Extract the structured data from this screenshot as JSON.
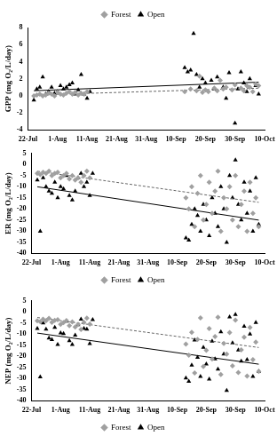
{
  "chart_data": [
    {
      "type": "scatter",
      "y_label": "GPP (mg O₂/L/day)",
      "legend": "top",
      "grid": false,
      "xlim": [
        0,
        80
      ],
      "xticks": [
        {
          "value": 0,
          "label": "22-Jul"
        },
        {
          "value": 10,
          "label": "1-Aug"
        },
        {
          "value": 20,
          "label": "11-Aug"
        },
        {
          "value": 30,
          "label": "21-Aug"
        },
        {
          "value": 40,
          "label": "31-Aug"
        },
        {
          "value": 50,
          "label": "10-Sep"
        },
        {
          "value": 60,
          "label": "20-Sep"
        },
        {
          "value": 70,
          "label": "30-Sep"
        },
        {
          "value": 80,
          "label": "10-Oct"
        }
      ],
      "ylim": [
        -4,
        8
      ],
      "yticks": [
        -4,
        -2,
        0,
        2,
        4,
        6,
        8
      ],
      "series": [
        {
          "name": "Forest",
          "color": "#a0a0a0",
          "marker": "diamond",
          "line_style": "dashed",
          "x": [
            2,
            3,
            4,
            5,
            6,
            7,
            8,
            9,
            10,
            11,
            12,
            13,
            14,
            15,
            16,
            17,
            18,
            19,
            20,
            53,
            55,
            57,
            58,
            59,
            60,
            61,
            63,
            64,
            65,
            66,
            67,
            69,
            70,
            72,
            73,
            74,
            75,
            76,
            77,
            78
          ],
          "values": [
            0,
            0.1,
            0.2,
            0,
            0.1,
            0.3,
            0.2,
            0,
            0.4,
            0.2,
            0.1,
            0.3,
            0.5,
            0.2,
            0.4,
            0.1,
            0.3,
            0.2,
            0.5,
            0.5,
            0.8,
            0.6,
            2.3,
            0.4,
            0.7,
            0.5,
            0.9,
            0.6,
            1.8,
            0.8,
            1.0,
            0.7,
            1.3,
            0.9,
            0.6,
            1.2,
            1.0,
            0.5,
            1.4,
            1.2
          ],
          "trend": {
            "x": [
              2,
              78
            ],
            "values": [
              0.1,
              0.9
            ]
          }
        },
        {
          "name": "Open",
          "color": "#000000",
          "marker": "triangle",
          "line_style": "solid",
          "x": [
            2,
            3,
            4,
            5,
            6,
            7,
            8,
            9,
            10,
            11,
            12,
            13,
            14,
            15,
            16,
            17,
            18,
            19,
            20,
            21,
            53,
            54,
            55,
            56,
            57,
            58,
            59,
            60,
            62,
            63,
            64,
            66,
            67,
            68,
            70,
            71,
            72,
            73,
            74,
            75,
            77,
            78
          ],
          "values": [
            -0.5,
            0.8,
            1.0,
            2.2,
            0.2,
            0.5,
            1.0,
            0.3,
            0.5,
            1.2,
            0.8,
            1.0,
            1.3,
            1.5,
            0.2,
            0.7,
            2.5,
            0.2,
            -0.3,
            0.5,
            3.3,
            2.8,
            3.0,
            7.3,
            2.5,
            1.0,
            2.0,
            1.5,
            1.8,
            0.8,
            2.2,
            1.0,
            -0.3,
            2.7,
            -3.2,
            0.8,
            2.8,
            1.5,
            0.5,
            2.0,
            1.2,
            0.2
          ],
          "trend": {
            "x": [
              2,
              78
            ],
            "values": [
              0.6,
              1.6
            ]
          }
        }
      ]
    },
    {
      "type": "scatter",
      "y_label": "ER (mg O₂/L/day)",
      "legend": "bottom",
      "grid": false,
      "xlim": [
        0,
        80
      ],
      "xticks": [
        {
          "value": 0,
          "label": "22-Jul"
        },
        {
          "value": 10,
          "label": "1-Aug"
        },
        {
          "value": 20,
          "label": "11-Aug"
        },
        {
          "value": 30,
          "label": "21-Aug"
        },
        {
          "value": 40,
          "label": "31-Aug"
        },
        {
          "value": 50,
          "label": "10-Sep"
        },
        {
          "value": 60,
          "label": "20-Sep"
        },
        {
          "value": 70,
          "label": "30-Sep"
        },
        {
          "value": 80,
          "label": "10-Oct"
        }
      ],
      "ylim": [
        -40,
        5
      ],
      "yticks": [
        -40,
        -35,
        -30,
        -25,
        -20,
        -15,
        -10,
        -5,
        0,
        5
      ],
      "series": [
        {
          "name": "Forest",
          "color": "#a0a0a0",
          "marker": "diamond",
          "line_style": "dashed",
          "x": [
            2,
            3,
            4,
            5,
            6,
            7,
            8,
            9,
            10,
            11,
            12,
            13,
            14,
            15,
            16,
            17,
            18,
            19,
            20,
            53,
            54,
            55,
            56,
            57,
            58,
            59,
            60,
            61,
            62,
            63,
            64,
            65,
            66,
            67,
            68,
            69,
            70,
            71,
            72,
            73,
            74,
            75,
            76,
            77,
            78
          ],
          "values": [
            -4,
            -4.5,
            -3.5,
            -4,
            -3,
            -5,
            -4,
            -3.5,
            -6,
            -5,
            -4,
            -6.5,
            -5,
            -7,
            -6,
            -8,
            -5,
            -3,
            -6,
            -15,
            -20,
            -10,
            -28,
            -13,
            -5,
            -25,
            -18,
            -8,
            -22,
            -12,
            -3,
            -30,
            -15,
            -20,
            -10,
            -25,
            -5,
            -28,
            -18,
            -12,
            -30,
            -8,
            -22,
            -15,
            -28
          ],
          "trend": {
            "x": [
              2,
              78
            ],
            "values": [
              -3,
              -17
            ]
          }
        },
        {
          "name": "Open",
          "color": "#000000",
          "marker": "triangle",
          "line_style": "solid",
          "x": [
            2,
            3,
            4,
            5,
            6,
            7,
            8,
            9,
            10,
            11,
            12,
            13,
            14,
            15,
            16,
            17,
            18,
            19,
            20,
            21,
            53,
            54,
            55,
            56,
            57,
            58,
            59,
            60,
            61,
            62,
            63,
            64,
            65,
            66,
            67,
            68,
            69,
            70,
            71,
            72,
            73,
            74,
            75,
            76,
            77,
            78
          ],
          "values": [
            -7,
            -30,
            -6,
            -10,
            -12,
            -13,
            -8,
            -15,
            -10,
            -11,
            -5,
            -14,
            -16,
            -12,
            -6,
            -4,
            -10,
            -8,
            -14,
            -4,
            -33,
            -34,
            -27,
            -20,
            -23,
            -30,
            -18,
            -25,
            -32,
            -15,
            -22,
            -28,
            -10,
            -20,
            -35,
            -5,
            -15,
            2,
            -18,
            -25,
            -8,
            -22,
            -12,
            -30,
            -6,
            -27
          ],
          "trend": {
            "x": [
              2,
              78
            ],
            "values": [
              -10,
              -25
            ]
          }
        }
      ]
    },
    {
      "type": "scatter",
      "y_label": "NEP (mg O₂/L/day)",
      "legend": "bottom",
      "grid": false,
      "xlim": [
        0,
        80
      ],
      "xticks": [
        {
          "value": 0,
          "label": "22-Jul"
        },
        {
          "value": 10,
          "label": "1-Aug"
        },
        {
          "value": 20,
          "label": "11-Aug"
        },
        {
          "value": 30,
          "label": "21-Aug"
        },
        {
          "value": 40,
          "label": "31-Aug"
        },
        {
          "value": 50,
          "label": "10-Sep"
        },
        {
          "value": 60,
          "label": "20-Sep"
        },
        {
          "value": 70,
          "label": "30-Sep"
        },
        {
          "value": 80,
          "label": "10-Oct"
        }
      ],
      "ylim": [
        -40,
        5
      ],
      "yticks": [
        -40,
        -35,
        -30,
        -25,
        -20,
        -15,
        -10,
        -5,
        0,
        5
      ],
      "series": [
        {
          "name": "Forest",
          "color": "#a0a0a0",
          "marker": "diamond",
          "line_style": "dashed",
          "x": [
            2,
            3,
            4,
            5,
            6,
            7,
            8,
            9,
            10,
            11,
            12,
            13,
            14,
            15,
            16,
            17,
            18,
            19,
            20,
            53,
            54,
            55,
            56,
            57,
            58,
            59,
            60,
            61,
            62,
            63,
            64,
            65,
            66,
            67,
            68,
            69,
            70,
            71,
            72,
            73,
            74,
            75,
            76,
            77,
            78
          ],
          "values": [
            -4,
            -4.4,
            -3.3,
            -4,
            -2.9,
            -4.7,
            -3.8,
            -3.5,
            -5.6,
            -4.8,
            -3.9,
            -6.2,
            -4.5,
            -6.8,
            -5.6,
            -7.9,
            -4.7,
            -2.8,
            -5.5,
            -14.5,
            -19.5,
            -9.2,
            -27.5,
            -12.4,
            -2.7,
            -24.6,
            -17.3,
            -7.5,
            -21.2,
            -11.1,
            -2.4,
            -28.2,
            -14.2,
            -19,
            -9.3,
            -24.3,
            -3.7,
            -27.3,
            -17.1,
            -11.4,
            -28.8,
            -7,
            -21.5,
            -13.6,
            -26.8
          ],
          "trend": {
            "x": [
              2,
              78
            ],
            "values": [
              -2.5,
              -16
            ]
          }
        },
        {
          "name": "Open",
          "color": "#000000",
          "marker": "triangle",
          "line_style": "solid",
          "x": [
            2,
            3,
            4,
            5,
            6,
            7,
            8,
            9,
            10,
            11,
            12,
            13,
            14,
            15,
            16,
            17,
            18,
            19,
            20,
            21,
            53,
            54,
            55,
            56,
            57,
            58,
            59,
            60,
            61,
            62,
            63,
            64,
            65,
            66,
            67,
            68,
            69,
            70,
            71,
            72,
            73,
            74,
            75,
            76,
            77,
            78
          ],
          "values": [
            -7.5,
            -29.2,
            -5,
            -7.8,
            -11.8,
            -12.5,
            -7,
            -14.7,
            -9.5,
            -9.8,
            -4.2,
            -13,
            -14.7,
            -10.5,
            -5.8,
            -3.3,
            -7.5,
            -7.8,
            -14.3,
            -3.5,
            -29.7,
            -31.2,
            -24,
            -12.7,
            -20.5,
            -29,
            -16,
            -23.5,
            -30.2,
            -13.2,
            -21.2,
            -25.8,
            -9,
            -19,
            -35.3,
            -2.3,
            -14,
            -1.2,
            -17.2,
            -22.2,
            -6.5,
            -21.5,
            -10,
            -29,
            -4.8,
            -26.8
          ],
          "trend": {
            "x": [
              2,
              78
            ],
            "values": [
              -9.5,
              -23.5
            ]
          }
        }
      ]
    }
  ]
}
